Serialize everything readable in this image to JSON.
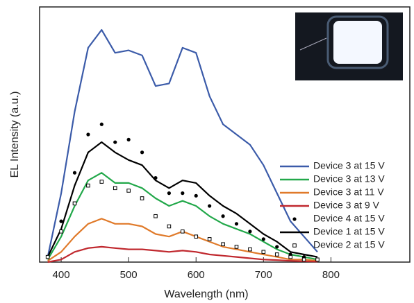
{
  "chart_data": {
    "type": "line",
    "x_label": "Wavelength (nm)",
    "y_label": "EL Intensity (a.u.)",
    "xlim": [
      368,
      917
    ],
    "ylim": [
      0,
      100
    ],
    "xticks": [
      400,
      500,
      600,
      700,
      800
    ],
    "x": [
      380,
      400,
      420,
      440,
      460,
      480,
      500,
      520,
      540,
      560,
      580,
      600,
      620,
      640,
      660,
      680,
      700,
      720,
      740,
      760,
      780
    ],
    "series": [
      {
        "name": "Device 3 at 15 V",
        "color": "#3b5ba9",
        "style": "line",
        "values": [
          2,
          27,
          59,
          84,
          91,
          82,
          83,
          81,
          69,
          70,
          84,
          82,
          65,
          54,
          50,
          46,
          38,
          27,
          16,
          10,
          4
        ]
      },
      {
        "name": "Device 3 at 13 V",
        "color": "#22a84a",
        "style": "line",
        "values": [
          1,
          10,
          22,
          32,
          35,
          31,
          31,
          29,
          25,
          22,
          24,
          22,
          18,
          15,
          13,
          11,
          8,
          5,
          3,
          2,
          1
        ]
      },
      {
        "name": "Device 3 at 11 V",
        "color": "#e07a2a",
        "style": "line",
        "values": [
          0.5,
          4,
          10,
          15,
          17,
          15,
          15,
          14,
          11,
          10,
          12,
          10,
          8,
          6,
          5,
          4,
          3,
          2,
          1,
          1,
          0.5
        ]
      },
      {
        "name": "Device 3 at  9 V",
        "color": "#c0282e",
        "style": "line",
        "values": [
          0,
          1,
          4,
          5.5,
          6,
          5.5,
          5,
          5,
          4.5,
          4,
          4.5,
          4,
          3,
          2.5,
          2,
          1.5,
          1,
          0.8,
          0.5,
          0.3,
          0.2
        ]
      },
      {
        "name": "Device 4 at 15 V",
        "color": "#000000",
        "style": "filled-marker",
        "values": [
          2,
          16,
          35,
          50,
          54,
          47,
          48,
          43,
          33,
          27,
          27,
          26,
          22,
          18,
          15,
          12,
          9,
          6,
          3,
          2,
          1
        ]
      },
      {
        "name": "Device 1 at 15 V",
        "color": "#000000",
        "style": "line",
        "values": [
          2,
          13,
          30,
          43,
          47,
          43,
          40,
          38,
          32,
          29,
          32,
          31,
          26,
          22,
          19,
          15,
          11,
          8,
          4,
          3,
          2
        ]
      },
      {
        "name": "Device 2 at 15 V",
        "color": "#000000",
        "style": "open-marker",
        "values": [
          2,
          12,
          23,
          30,
          31.5,
          29,
          28,
          25,
          18,
          14,
          12,
          10,
          9,
          7,
          6,
          5,
          4,
          3,
          2,
          1,
          1
        ]
      }
    ]
  }
}
